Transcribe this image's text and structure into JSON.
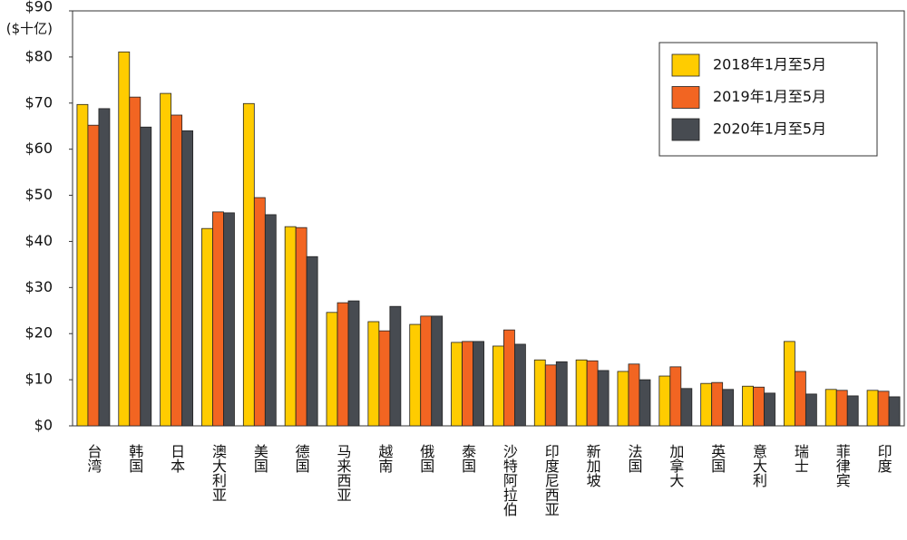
{
  "chart_data": {
    "type": "bar",
    "y_axis_label": "($十亿)",
    "categories": [
      "台湾",
      "韩国",
      "日本",
      "澳大利亚",
      "美国",
      "德国",
      "马来西亚",
      "越南",
      "俄国",
      "泰国",
      "沙特阿拉伯",
      "印度尼西亚",
      "新加坡",
      "法国",
      "加拿大",
      "英国",
      "意大利",
      "瑞士",
      "菲律宾",
      "印度"
    ],
    "series": [
      {
        "name": "2018年1月至5月",
        "color": "#ffcc00",
        "values": [
          69.7,
          81.1,
          72.1,
          42.8,
          69.9,
          43.2,
          24.6,
          22.6,
          22.0,
          18.1,
          17.3,
          14.3,
          14.3,
          11.8,
          10.8,
          9.2,
          8.6,
          18.3,
          7.9,
          7.7
        ]
      },
      {
        "name": "2019年1月至5月",
        "color": "#f26522",
        "values": [
          65.2,
          71.3,
          67.4,
          46.4,
          49.5,
          43.0,
          26.7,
          20.6,
          23.8,
          18.3,
          20.8,
          13.2,
          14.1,
          13.4,
          12.8,
          9.4,
          8.4,
          11.8,
          7.7,
          7.5
        ]
      },
      {
        "name": "2020年1月至5月",
        "color": "#474b51",
        "values": [
          68.8,
          64.8,
          64.0,
          46.2,
          45.8,
          36.7,
          27.1,
          25.9,
          23.8,
          18.3,
          17.7,
          13.9,
          12.0,
          10.0,
          8.1,
          7.9,
          7.1,
          6.9,
          6.5,
          6.3
        ]
      }
    ],
    "ylim": [
      0,
      90
    ],
    "yticks": [
      {
        "value": 0,
        "label": "$0"
      },
      {
        "value": 10,
        "label": "$10"
      },
      {
        "value": 20,
        "label": "$20"
      },
      {
        "value": 30,
        "label": "$30"
      },
      {
        "value": 40,
        "label": "$40"
      },
      {
        "value": 50,
        "label": "$50"
      },
      {
        "value": 60,
        "label": "$60"
      },
      {
        "value": 70,
        "label": "$70"
      },
      {
        "value": 80,
        "label": "$80"
      },
      {
        "value": 90,
        "label": "$90"
      }
    ],
    "grid": false,
    "legend": "upper right"
  }
}
